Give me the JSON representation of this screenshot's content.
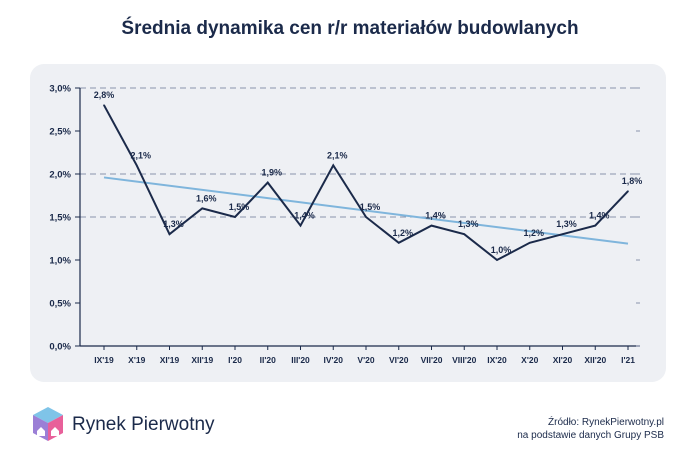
{
  "header": {
    "title": "Średnia dynamika cen r/r materiałów budowlanych"
  },
  "chart_data": {
    "type": "line",
    "title": "Średnia dynamika cen r/r materiałów budowlanych",
    "categories": [
      "IX'19",
      "X'19",
      "XI'19",
      "XII'19",
      "I'20",
      "II'20",
      "III'20",
      "IV'20",
      "V'20",
      "VI'20",
      "VII'20",
      "VIII'20",
      "IX'20",
      "X'20",
      "XI'20",
      "XII'20",
      "I'21"
    ],
    "series": [
      {
        "values": [
          2.8,
          2.1,
          1.3,
          1.6,
          1.5,
          1.9,
          1.4,
          2.1,
          1.5,
          1.2,
          1.4,
          1.3,
          1.0,
          1.2,
          1.3,
          1.4,
          1.8
        ],
        "labels": [
          "2,8%",
          "2,1%",
          "1,3%",
          "1,6%",
          "1,5%",
          "1,9%",
          "1,4%",
          "2,1%",
          "1,5%",
          "1,2%",
          "1,4%",
          "1,3%",
          "1,0%",
          "1,2%",
          "1,3%",
          "1,4%",
          "1,8%"
        ],
        "color": "#1b2a4a"
      }
    ],
    "trendline": {
      "start": 1.96,
      "end": 1.19,
      "color": "#7fb5dc"
    },
    "ylim": [
      0,
      3
    ],
    "yticks": [
      0,
      0.5,
      1.0,
      1.5,
      2.0,
      2.5,
      3.0
    ],
    "ytick_labels": [
      "0,0%",
      "0,5%",
      "1,0%",
      "1,5%",
      "2,0%",
      "2,5%",
      "3,0%"
    ],
    "dashed_levels": [
      1.5,
      2.0,
      3.0
    ],
    "grid": false
  },
  "colors": {
    "text": "#1b2a4a",
    "panel": "#eef0f4",
    "trend": "#7fb5dc",
    "dashed": "#8a93ad"
  },
  "branding": {
    "name": "Rynek Pierwotny"
  },
  "source": {
    "line1": "Źródło: RynekPierwotny.pl",
    "line2": "na podstawie danych Grupy PSB"
  }
}
